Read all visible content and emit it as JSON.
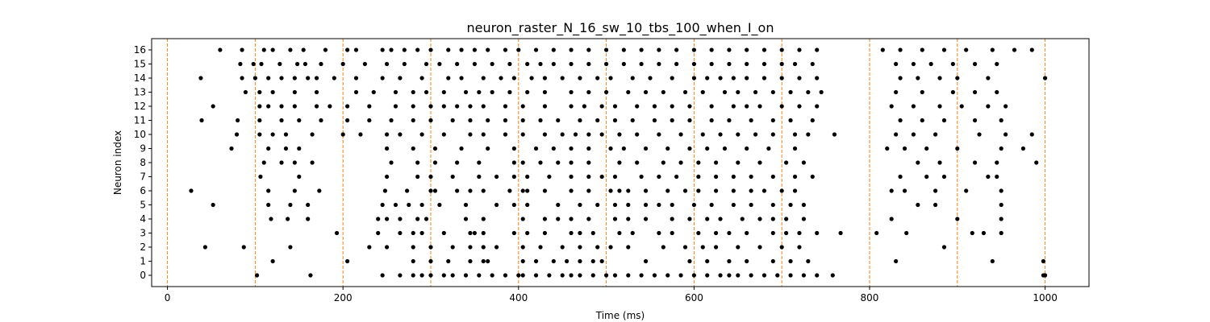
{
  "chart_data": {
    "type": "scatter",
    "title": "neuron_raster_N_16_sw_10_tbs_100_when_I_on",
    "xlabel": "Time (ms)",
    "ylabel": "Neuron index",
    "xlim": [
      -18,
      1050
    ],
    "ylim": [
      -0.8,
      16.8
    ],
    "x_ticks": [
      0,
      200,
      400,
      600,
      800,
      1000
    ],
    "y_ticks": [
      0,
      1,
      2,
      3,
      4,
      5,
      6,
      7,
      8,
      9,
      10,
      11,
      12,
      13,
      14,
      15,
      16
    ],
    "grid": false,
    "legend": "none",
    "marker_color": "#000000",
    "vline_color": "#ff7f0e",
    "vlines": [
      0,
      100,
      200,
      300,
      400,
      500,
      600,
      700,
      800,
      900,
      1000
    ],
    "spikes": {
      "0": [
        102,
        163,
        245,
        265,
        280,
        290,
        300,
        315,
        325,
        340,
        355,
        370,
        385,
        400,
        405,
        420,
        435,
        450,
        460,
        470,
        485,
        500,
        510,
        525,
        540,
        555,
        570,
        585,
        600,
        615,
        630,
        640,
        650,
        665,
        680,
        695,
        710,
        725,
        740,
        758,
        998,
        1000
      ],
      "1": [
        120,
        205,
        280,
        300,
        320,
        345,
        360,
        365,
        405,
        420,
        440,
        455,
        470,
        485,
        495,
        545,
        595,
        615,
        640,
        660,
        690,
        710,
        730,
        830,
        940,
        998
      ],
      "2": [
        43,
        87,
        140,
        230,
        250,
        280,
        300,
        325,
        345,
        360,
        375,
        405,
        425,
        450,
        470,
        490,
        505,
        525,
        565,
        590,
        610,
        625,
        650,
        675,
        700,
        720,
        885
      ],
      "3": [
        193,
        240,
        265,
        280,
        290,
        315,
        345,
        350,
        360,
        395,
        410,
        430,
        460,
        470,
        485,
        515,
        530,
        560,
        575,
        605,
        625,
        640,
        660,
        690,
        705,
        720,
        740,
        767,
        808,
        842,
        917,
        930,
        950
      ],
      "4": [
        118,
        137,
        160,
        240,
        250,
        265,
        285,
        295,
        340,
        360,
        405,
        430,
        445,
        460,
        480,
        510,
        525,
        545,
        575,
        595,
        615,
        630,
        655,
        675,
        690,
        705,
        725,
        825,
        900,
        950
      ],
      "5": [
        52,
        115,
        140,
        160,
        245,
        260,
        275,
        290,
        310,
        340,
        375,
        395,
        410,
        445,
        470,
        490,
        510,
        525,
        545,
        560,
        575,
        600,
        620,
        645,
        665,
        690,
        710,
        725,
        855,
        875,
        950
      ],
      "6": [
        27,
        115,
        145,
        173,
        248,
        273,
        300,
        305,
        330,
        345,
        360,
        390,
        405,
        410,
        430,
        460,
        480,
        505,
        515,
        525,
        545,
        570,
        590,
        605,
        625,
        645,
        665,
        680,
        700,
        715,
        825,
        840,
        875,
        910,
        950
      ],
      "7": [
        106,
        150,
        250,
        285,
        300,
        325,
        355,
        375,
        395,
        410,
        435,
        460,
        480,
        495,
        510,
        540,
        560,
        580,
        605,
        625,
        645,
        665,
        690,
        715,
        735,
        835,
        865,
        885,
        935,
        945
      ],
      "8": [
        110,
        130,
        145,
        165,
        255,
        285,
        305,
        330,
        355,
        395,
        405,
        425,
        445,
        460,
        480,
        515,
        535,
        565,
        585,
        605,
        625,
        650,
        675,
        705,
        725,
        855,
        880,
        920,
        945,
        990
      ],
      "9": [
        73,
        115,
        135,
        150,
        250,
        280,
        305,
        335,
        365,
        395,
        420,
        440,
        460,
        480,
        505,
        520,
        545,
        570,
        595,
        615,
        635,
        660,
        685,
        715,
        820,
        840,
        865,
        900,
        950,
        975
      ],
      "10": [
        79,
        105,
        120,
        135,
        165,
        200,
        220,
        250,
        265,
        290,
        315,
        345,
        360,
        385,
        405,
        430,
        450,
        465,
        480,
        495,
        515,
        535,
        560,
        585,
        610,
        630,
        650,
        670,
        690,
        715,
        730,
        760,
        830,
        850,
        875,
        925,
        955,
        985
      ],
      "11": [
        39,
        80,
        105,
        130,
        150,
        175,
        205,
        230,
        255,
        280,
        300,
        325,
        345,
        365,
        385,
        405,
        425,
        445,
        470,
        490,
        510,
        530,
        555,
        575,
        595,
        620,
        640,
        665,
        690,
        710,
        735,
        835,
        860,
        885,
        920,
        950
      ],
      "12": [
        52,
        105,
        115,
        130,
        145,
        170,
        185,
        205,
        230,
        260,
        280,
        300,
        315,
        330,
        345,
        360,
        385,
        405,
        430,
        460,
        475,
        495,
        510,
        535,
        555,
        575,
        595,
        620,
        645,
        660,
        675,
        700,
        720,
        740,
        825,
        850,
        880,
        905,
        935,
        955
      ],
      "13": [
        89,
        105,
        120,
        145,
        170,
        215,
        235,
        260,
        280,
        295,
        315,
        340,
        355,
        370,
        390,
        410,
        430,
        460,
        480,
        500,
        525,
        545,
        565,
        590,
        610,
        635,
        650,
        670,
        690,
        710,
        730,
        745,
        830,
        860,
        895,
        920,
        945
      ],
      "14": [
        38,
        85,
        100,
        115,
        130,
        145,
        160,
        170,
        190,
        215,
        245,
        265,
        290,
        320,
        335,
        360,
        380,
        395,
        415,
        430,
        450,
        470,
        490,
        505,
        530,
        550,
        575,
        600,
        615,
        630,
        645,
        660,
        680,
        700,
        720,
        740,
        835,
        855,
        880,
        900,
        935,
        1000
      ],
      "15": [
        83,
        98,
        107,
        128,
        148,
        157,
        175,
        200,
        225,
        250,
        270,
        295,
        310,
        330,
        350,
        370,
        390,
        410,
        425,
        440,
        460,
        480,
        500,
        520,
        540,
        560,
        580,
        600,
        620,
        640,
        660,
        680,
        700,
        715,
        735,
        830,
        850,
        870,
        895,
        920,
        945
      ],
      "16": [
        60,
        85,
        110,
        120,
        140,
        155,
        180,
        205,
        215,
        245,
        255,
        270,
        285,
        300,
        320,
        335,
        350,
        365,
        385,
        400,
        420,
        440,
        460,
        480,
        500,
        520,
        540,
        560,
        580,
        600,
        620,
        640,
        660,
        680,
        700,
        720,
        740,
        815,
        835,
        860,
        885,
        910,
        940,
        965,
        985
      ]
    }
  }
}
